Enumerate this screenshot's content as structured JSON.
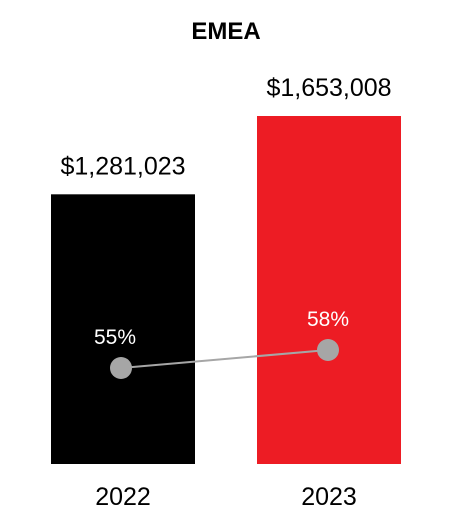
{
  "chart_data": {
    "type": "bar",
    "title": "EMEA",
    "categories": [
      "2022",
      "2023"
    ],
    "values": [
      1281023,
      1653008
    ],
    "value_labels": [
      "$1,281,023",
      "$1,653,008"
    ],
    "bar_colors": [
      "#000000",
      "#ed1c24"
    ],
    "ylim": [
      0,
      1653008
    ],
    "xlabel": "",
    "ylabel": "",
    "grid": false,
    "overlay_line": {
      "type": "line",
      "values": [
        55,
        58
      ],
      "labels": [
        "55%",
        "58%"
      ],
      "marker_color": "#a6a6a6",
      "line_color": "#a6a6a6"
    }
  }
}
